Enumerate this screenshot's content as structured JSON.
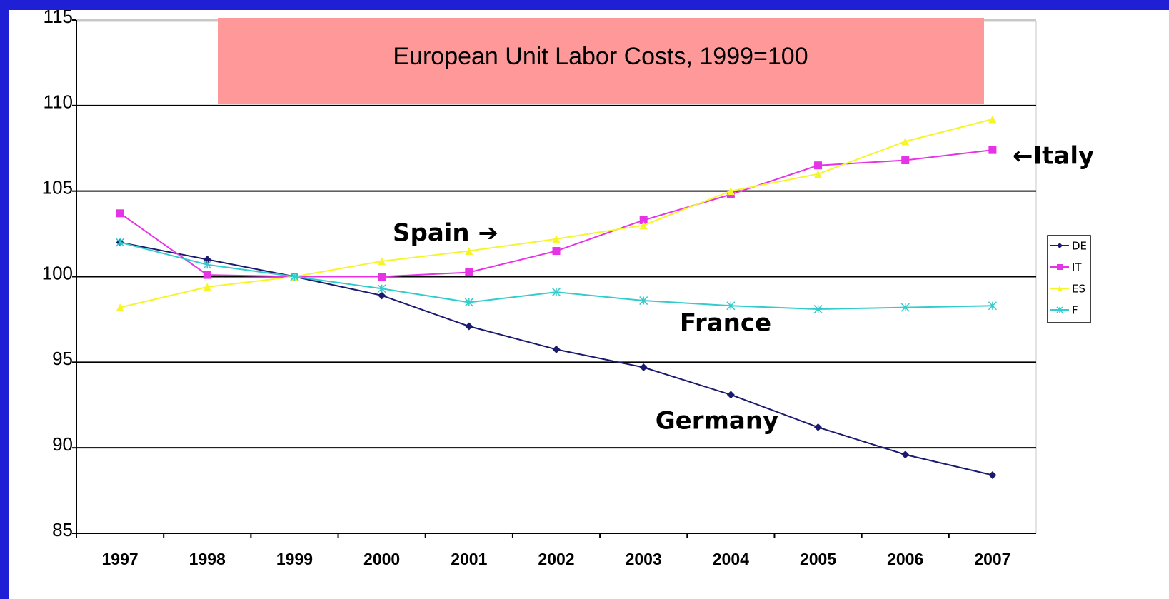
{
  "chart_data": {
    "type": "line",
    "title": "European Unit Labor Costs, 1999=100",
    "categories": [
      "1997",
      "1998",
      "1999",
      "2000",
      "2001",
      "2002",
      "2003",
      "2004",
      "2005",
      "2006",
      "2007"
    ],
    "series": [
      {
        "name": "DE",
        "color": "#1a1a6e",
        "marker": "diamond",
        "values": [
          102.0,
          101.0,
          100.0,
          98.9,
          97.1,
          95.75,
          94.7,
          93.1,
          91.2,
          89.6,
          88.4
        ]
      },
      {
        "name": "IT",
        "color": "#e633e6",
        "marker": "square",
        "values": [
          103.7,
          100.1,
          100.0,
          100.0,
          100.25,
          101.5,
          103.3,
          104.8,
          106.5,
          106.8,
          107.4
        ]
      },
      {
        "name": "ES",
        "color": "#f5f52a",
        "marker": "triangle",
        "values": [
          98.2,
          99.4,
          100.0,
          100.9,
          101.5,
          102.2,
          103.0,
          105.0,
          106.0,
          107.9,
          109.2
        ]
      },
      {
        "name": "F",
        "color": "#33cccc",
        "marker": "star",
        "values": [
          102.0,
          100.7,
          100.0,
          99.3,
          98.5,
          99.1,
          98.6,
          98.3,
          98.1,
          98.2,
          98.3
        ]
      }
    ],
    "ylim": [
      85,
      115
    ],
    "yticks": [
      85,
      90,
      95,
      100,
      105,
      110,
      115
    ],
    "grid": true,
    "legend": "right",
    "annotations": [
      "Spain ➔",
      "France",
      "Germany",
      "←Italy"
    ]
  }
}
